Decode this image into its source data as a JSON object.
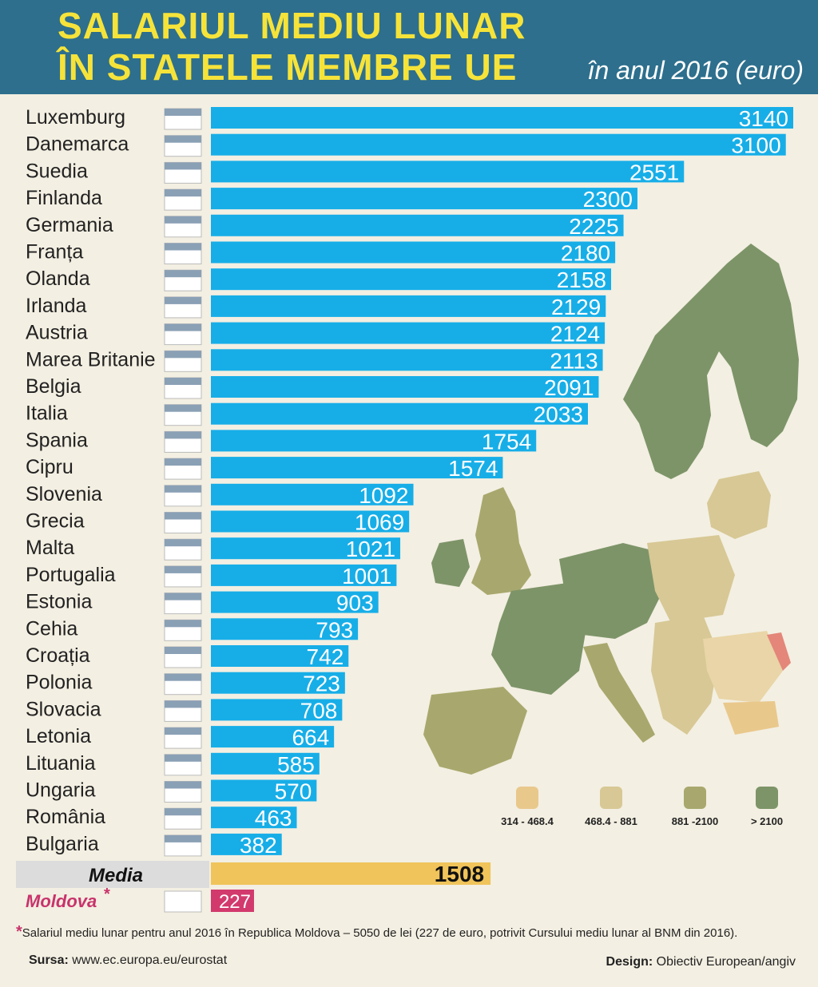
{
  "header": {
    "title_line1": "SALARIUL MEDIU LUNAR",
    "title_line2": "ÎN STATELE MEMBRE UE",
    "subtitle": "în anul 2016 (euro)"
  },
  "colors": {
    "header_bg": "#2d6f8d",
    "title": "#f6e33a",
    "bar": "#17aee8",
    "media_bar": "#f0c45a",
    "moldova_bar": "#d23a6d",
    "moldova_label": "#c8336b",
    "background": "#f3efe2"
  },
  "chart_data": {
    "type": "bar",
    "orientation": "horizontal",
    "categories": [
      "Luxemburg",
      "Danemarca",
      "Suedia",
      "Finlanda",
      "Germania",
      "Franța",
      "Olanda",
      "Irlanda",
      "Austria",
      "Marea Britanie",
      "Belgia",
      "Italia",
      "Spania",
      "Cipru",
      "Slovenia",
      "Grecia",
      "Malta",
      "Portugalia",
      "Estonia",
      "Cehia",
      "Croația",
      "Polonia",
      "Slovacia",
      "Letonia",
      "Lituania",
      "Ungaria",
      "România",
      "Bulgaria"
    ],
    "values": [
      3140,
      3100,
      2551,
      2300,
      2225,
      2180,
      2158,
      2129,
      2124,
      2113,
      2091,
      2033,
      1754,
      1574,
      1092,
      1069,
      1021,
      1001,
      903,
      793,
      742,
      723,
      708,
      664,
      585,
      570,
      463,
      382
    ],
    "media": {
      "label": "Media",
      "value": 1508
    },
    "moldova": {
      "label": "Moldova",
      "marker": "*",
      "value": 227
    },
    "xlim": [
      0,
      3140
    ]
  },
  "legend": [
    {
      "label": "314 - 468.4",
      "color": "#e9c88c"
    },
    {
      "label": "468.4 - 881",
      "color": "#d7c895"
    },
    {
      "label": "881 -2100",
      "color": "#a8a86e"
    },
    {
      "label": "> 2100",
      "color": "#7d9468"
    }
  ],
  "footer": {
    "footnote_star": "*",
    "footnote": "Salariul mediu lunar pentru anul 2016 în Republica Moldova – 5050 de lei (227 de euro, potrivit Cursului mediu lunar al BNM din 2016).",
    "source_label": "Sursa:",
    "source": "www.ec.europa.eu/eurostat",
    "design_label": "Design:",
    "design": "Obiectiv European/angiv"
  }
}
